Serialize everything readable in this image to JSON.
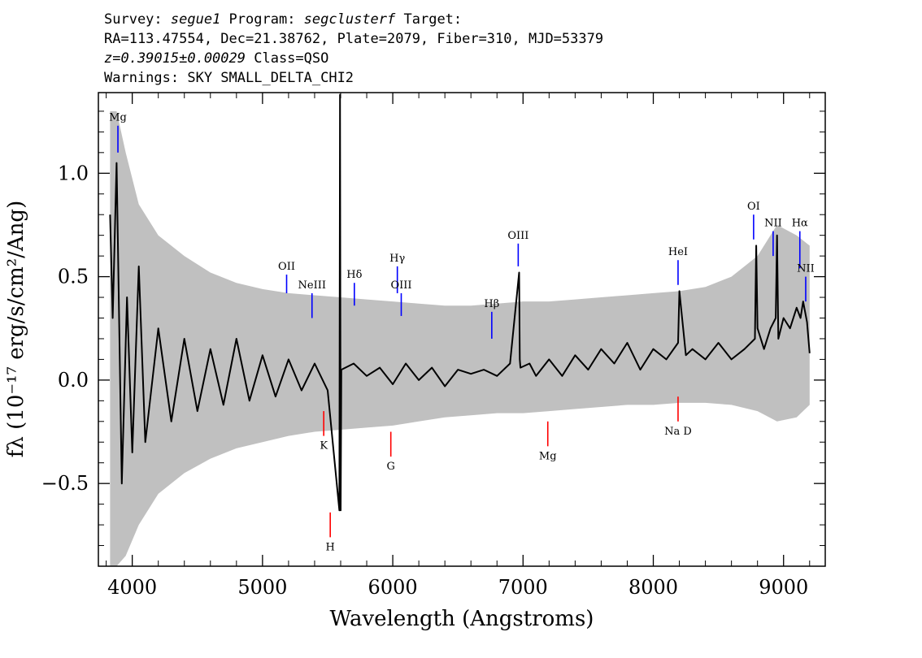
{
  "header": {
    "line1": {
      "survey_label": "Survey: ",
      "survey": "segue1",
      "program_label": " Program: ",
      "program": "segclusterf",
      "target_label": " Target:"
    },
    "line2": "RA=113.47554, Dec=21.38762, Plate=2079, Fiber=310, MJD=53379",
    "line3": {
      "redshift": "z=0.39015±0.00029",
      "class": " Class=QSO"
    },
    "line4": "Warnings: SKY SMALL_DELTA_CHI2"
  },
  "chart_data": {
    "type": "line",
    "title": "",
    "xlabel": "Wavelength (Angstroms)",
    "ylabel": "fλ (10⁻¹⁷ erg/s/cm²/Ang)",
    "xlim": [
      3740,
      9320
    ],
    "ylim": [
      -0.9,
      1.39
    ],
    "x_ticks": [
      4000,
      5000,
      6000,
      7000,
      8000,
      9000
    ],
    "x_tick_labels": [
      "4000",
      "5000",
      "6000",
      "7000",
      "8000",
      "9000"
    ],
    "y_ticks": [
      -0.5,
      0.0,
      0.5,
      1.0
    ],
    "y_tick_labels": [
      "−0.5",
      "0.0",
      "0.5",
      "1.0"
    ],
    "grid": false,
    "series": [
      {
        "role": "error-band",
        "color": "#c0c0c0",
        "x": [
          3830,
          3880,
          3950,
          4050,
          4200,
          4400,
          4600,
          4800,
          5000,
          5200,
          5400,
          5600,
          5800,
          6000,
          6200,
          6400,
          6600,
          6800,
          7000,
          7200,
          7400,
          7600,
          7800,
          8000,
          8200,
          8400,
          8600,
          8800,
          8950,
          9100,
          9200
        ],
        "low": [
          -0.9,
          -0.9,
          -0.85,
          -0.7,
          -0.55,
          -0.45,
          -0.38,
          -0.33,
          -0.3,
          -0.27,
          -0.25,
          -0.24,
          -0.23,
          -0.22,
          -0.2,
          -0.18,
          -0.17,
          -0.16,
          -0.16,
          -0.15,
          -0.14,
          -0.13,
          -0.12,
          -0.12,
          -0.11,
          -0.11,
          -0.12,
          -0.15,
          -0.2,
          -0.18,
          -0.12
        ],
        "high": [
          1.3,
          1.3,
          1.1,
          0.85,
          0.7,
          0.6,
          0.52,
          0.47,
          0.44,
          0.42,
          0.41,
          0.4,
          0.39,
          0.38,
          0.37,
          0.36,
          0.36,
          0.37,
          0.38,
          0.38,
          0.39,
          0.4,
          0.41,
          0.42,
          0.43,
          0.45,
          0.5,
          0.6,
          0.75,
          0.7,
          0.65
        ]
      },
      {
        "role": "flux",
        "color": "#000000",
        "x": [
          3830,
          3850,
          3880,
          3920,
          3960,
          4000,
          4050,
          4100,
          4200,
          4300,
          4400,
          4500,
          4600,
          4700,
          4800,
          4900,
          5000,
          5100,
          5200,
          5300,
          5400,
          5500,
          5590,
          5595,
          5600,
          5605,
          5700,
          5800,
          5900,
          6000,
          6100,
          6200,
          6300,
          6400,
          6500,
          6600,
          6700,
          6800,
          6900,
          6970,
          6975,
          6980,
          7050,
          7100,
          7200,
          7300,
          7400,
          7500,
          7600,
          7700,
          7800,
          7900,
          8000,
          8100,
          8190,
          8200,
          8250,
          8300,
          8400,
          8500,
          8600,
          8700,
          8780,
          8790,
          8800,
          8850,
          8900,
          8940,
          8950,
          8960,
          9000,
          9050,
          9100,
          9130,
          9150,
          9180,
          9200
        ],
        "y": [
          0.8,
          0.3,
          1.05,
          -0.5,
          0.4,
          -0.35,
          0.55,
          -0.3,
          0.25,
          -0.2,
          0.2,
          -0.15,
          0.15,
          -0.12,
          0.2,
          -0.1,
          0.12,
          -0.08,
          0.1,
          -0.05,
          0.08,
          -0.05,
          -0.63,
          1.38,
          -0.63,
          0.05,
          0.08,
          0.02,
          0.06,
          -0.02,
          0.08,
          0.0,
          0.06,
          -0.03,
          0.05,
          0.03,
          0.05,
          0.02,
          0.08,
          0.52,
          0.1,
          0.06,
          0.08,
          0.02,
          0.1,
          0.02,
          0.12,
          0.05,
          0.15,
          0.08,
          0.18,
          0.05,
          0.15,
          0.1,
          0.18,
          0.43,
          0.12,
          0.15,
          0.1,
          0.18,
          0.1,
          0.15,
          0.2,
          0.65,
          0.25,
          0.15,
          0.25,
          0.3,
          0.7,
          0.2,
          0.3,
          0.25,
          0.35,
          0.3,
          0.38,
          0.28,
          0.13
        ]
      }
    ],
    "emission_lines": [
      {
        "label": "Mg",
        "x": 3890,
        "y_bottom": 1.1,
        "y_top": 1.23,
        "color": "#0000ff"
      },
      {
        "label": "OII",
        "x": 5185,
        "y_bottom": 0.42,
        "y_top": 0.51,
        "color": "#0000ff"
      },
      {
        "label": "NeIII",
        "x": 5380,
        "y_bottom": 0.3,
        "y_top": 0.42,
        "color": "#0000ff"
      },
      {
        "label": "Hδ",
        "x": 5705,
        "y_bottom": 0.36,
        "y_top": 0.47,
        "color": "#0000ff"
      },
      {
        "label": "Hγ",
        "x": 6035,
        "y_bottom": 0.42,
        "y_top": 0.55,
        "color": "#0000ff"
      },
      {
        "label": "OIII",
        "x": 6065,
        "y_bottom": 0.31,
        "y_top": 0.42,
        "color": "#0000ff"
      },
      {
        "label": "Hβ",
        "x": 6760,
        "y_bottom": 0.2,
        "y_top": 0.33,
        "color": "#0000ff"
      },
      {
        "label": "OIII",
        "x": 6963,
        "y_bottom": 0.55,
        "y_top": 0.66,
        "color": "#0000ff"
      },
      {
        "label": "HeI",
        "x": 8190,
        "y_bottom": 0.46,
        "y_top": 0.58,
        "color": "#0000ff"
      },
      {
        "label": "OI",
        "x": 8770,
        "y_bottom": 0.68,
        "y_top": 0.8,
        "color": "#0000ff"
      },
      {
        "label": "NII",
        "x": 8920,
        "y_bottom": 0.6,
        "y_top": 0.72,
        "color": "#0000ff"
      },
      {
        "label": "Hα",
        "x": 9125,
        "y_bottom": 0.54,
        "y_top": 0.72,
        "color": "#0000ff"
      },
      {
        "label": "NII",
        "x": 9170,
        "y_bottom": 0.38,
        "y_top": 0.5,
        "color": "#0000ff"
      }
    ],
    "absorption_lines": [
      {
        "label": "K",
        "x": 5470,
        "y_bottom": -0.27,
        "y_top": -0.15,
        "color": "#ff0000"
      },
      {
        "label": "H",
        "x": 5520,
        "y_bottom": -0.76,
        "y_top": -0.64,
        "color": "#ff0000"
      },
      {
        "label": "G",
        "x": 5985,
        "y_bottom": -0.37,
        "y_top": -0.25,
        "color": "#ff0000"
      },
      {
        "label": "Mg",
        "x": 7190,
        "y_bottom": -0.32,
        "y_top": -0.2,
        "color": "#ff0000"
      },
      {
        "label": "Na D",
        "x": 8190,
        "y_bottom": -0.2,
        "y_top": -0.08,
        "color": "#ff0000"
      }
    ]
  }
}
